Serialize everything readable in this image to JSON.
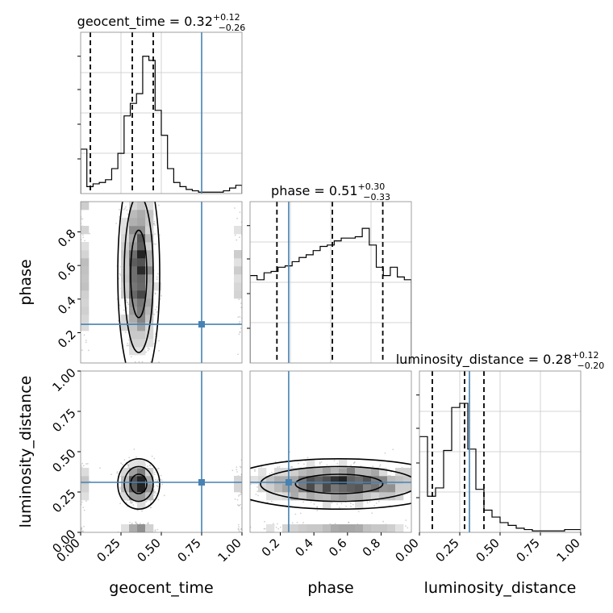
{
  "chart_data": {
    "type": "corner",
    "parameters": [
      "geocent_time",
      "phase",
      "luminosity_distance"
    ],
    "ranges": {
      "geocent_time": [
        0.0,
        1.0
      ],
      "phase": [
        0.02,
        0.98
      ],
      "luminosity_distance": [
        0.0,
        1.0
      ]
    },
    "truths": {
      "geocent_time": 0.75,
      "phase": 0.25,
      "luminosity_distance": 0.31
    },
    "titles": [
      {
        "param": "geocent_time",
        "text": "geocent_time = 0.32",
        "sup": "+0.12",
        "sub": "−0.26"
      },
      {
        "param": "phase",
        "text": "phase = 0.51",
        "sup": "+0.30",
        "sub": "−0.33"
      },
      {
        "param": "luminosity_distance",
        "text": "luminosity_distance = 0.28",
        "sup": "+0.12",
        "sub": "−0.20"
      }
    ],
    "quantiles": {
      "geocent_time": [
        0.06,
        0.32,
        0.45
      ],
      "phase": [
        0.18,
        0.51,
        0.81
      ],
      "luminosity_distance": [
        0.08,
        0.28,
        0.4
      ]
    },
    "histograms": {
      "geocent_time": [
        0.32,
        0.05,
        0.07,
        0.08,
        0.1,
        0.18,
        0.29,
        0.56,
        0.65,
        0.72,
        0.99,
        0.96,
        0.6,
        0.42,
        0.18,
        0.08,
        0.05,
        0.03,
        0.02,
        0.01,
        0.01,
        0.01,
        0.01,
        0.02,
        0.04,
        0.06
      ],
      "phase": [
        0.63,
        0.6,
        0.65,
        0.66,
        0.69,
        0.7,
        0.73,
        0.76,
        0.78,
        0.81,
        0.84,
        0.85,
        0.88,
        0.9,
        0.9,
        0.91,
        0.97,
        0.85,
        0.69,
        0.63,
        0.69,
        0.62,
        0.6
      ],
      "luminosity_distance": [
        0.69,
        0.26,
        0.32,
        0.59,
        0.9,
        0.93,
        0.6,
        0.31,
        0.16,
        0.11,
        0.07,
        0.05,
        0.03,
        0.02,
        0.01,
        0.01,
        0.01,
        0.01,
        0.02,
        0.02
      ]
    },
    "ticks": {
      "geocent_time": [
        "0.00",
        "0.25",
        "0.50",
        "0.75",
        "1.00"
      ],
      "phase": [
        "0.2",
        "0.4",
        "0.6",
        "0.8"
      ],
      "luminosity_distance": [
        "0.00",
        "0.25",
        "0.50",
        "0.75",
        "1.00"
      ]
    },
    "colors": {
      "truth": "#4682b4",
      "hist": "#000000",
      "grid": "#c8c8c8",
      "points": "#9a9a9a"
    }
  }
}
